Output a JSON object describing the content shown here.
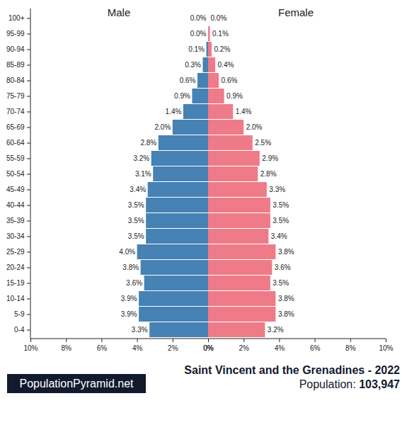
{
  "chart_data": {
    "type": "bar",
    "orientation": "horizontal",
    "title": "Saint Vincent and the Grenadines - 2022",
    "subtitle": "Population: 103,947",
    "source": "PopulationPyramid.net",
    "categories": [
      "0-4",
      "5-9",
      "10-14",
      "15-19",
      "20-24",
      "25-29",
      "30-34",
      "35-39",
      "40-44",
      "45-49",
      "50-54",
      "55-59",
      "60-64",
      "65-69",
      "70-74",
      "75-79",
      "80-84",
      "85-89",
      "90-94",
      "95-99",
      "100+"
    ],
    "series": [
      {
        "name": "Male",
        "color": "#4682b4",
        "values": [
          3.3,
          3.9,
          3.9,
          3.6,
          3.8,
          4.0,
          3.5,
          3.5,
          3.5,
          3.4,
          3.1,
          3.2,
          2.8,
          2.0,
          1.4,
          0.9,
          0.6,
          0.3,
          0.1,
          0.0,
          0.0
        ],
        "value_labels": [
          "3.3%",
          "3.9%",
          "3.9%",
          "3.6%",
          "3.8%",
          "4.0%",
          "3.5%",
          "3.5%",
          "3.5%",
          "3.4%",
          "3.1%",
          "3.2%",
          "2.8%",
          "2.0%",
          "1.4%",
          "0.9%",
          "0.6%",
          "0.3%",
          "0.1%",
          "0.0%",
          "0.0%"
        ]
      },
      {
        "name": "Female",
        "color": "#ef7b89",
        "values": [
          3.2,
          3.8,
          3.8,
          3.5,
          3.6,
          3.8,
          3.4,
          3.5,
          3.5,
          3.3,
          2.8,
          2.9,
          2.5,
          2.0,
          1.4,
          0.9,
          0.6,
          0.4,
          0.2,
          0.1,
          0.0
        ],
        "value_labels": [
          "3.2%",
          "3.8%",
          "3.8%",
          "3.5%",
          "3.6%",
          "3.8%",
          "3.4%",
          "3.5%",
          "3.5%",
          "3.3%",
          "2.8%",
          "2.9%",
          "2.5%",
          "2.0%",
          "1.4%",
          "0.9%",
          "0.6%",
          "0.4%",
          "0.2%",
          "0.1%",
          "0.0%"
        ]
      }
    ],
    "xlim": [
      0,
      10
    ],
    "xticks": [
      {
        "value": 0,
        "label": "0%"
      },
      {
        "value": 2,
        "label": "2%"
      },
      {
        "value": 4,
        "label": "4%"
      },
      {
        "value": 6,
        "label": "6%"
      },
      {
        "value": 8,
        "label": "8%"
      },
      {
        "value": 10,
        "label": "10%"
      }
    ],
    "data_labels": true,
    "grid": false
  }
}
